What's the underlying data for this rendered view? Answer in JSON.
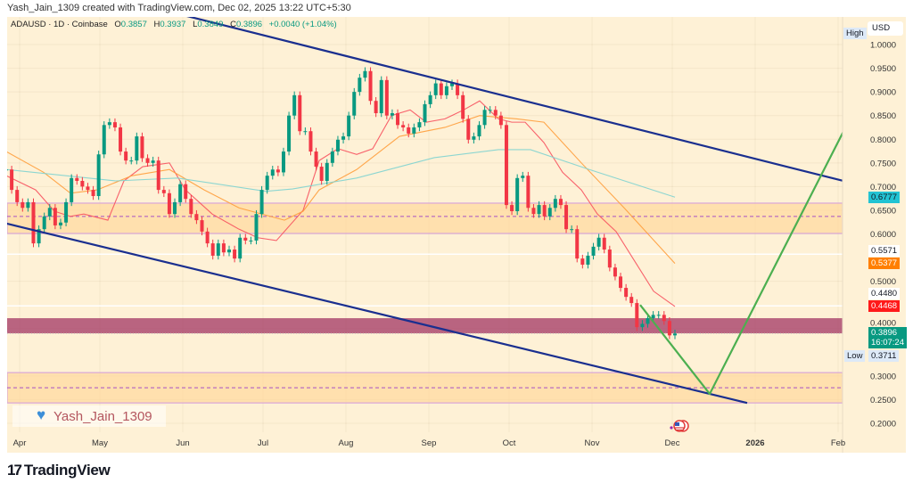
{
  "credit": "Yash_Jain_1309 created with TradingView.com, Dec 02, 2025 13:22 UTC+5:30",
  "legend": {
    "symbol": "ADAUSD · 1D · Coinbase",
    "o_label": "O",
    "o": "0.3857",
    "h_label": "H",
    "h": "0.3937",
    "l_label": "L",
    "l": "0.3849",
    "c_label": "C",
    "c": "0.3896",
    "change": "+0.0040 (+1.04%)"
  },
  "currency": "USD",
  "high_label": "High",
  "low_label": "Low",
  "watermark": "Yash_Jain_1309",
  "brand": "TradingView",
  "colors": {
    "background": "#fef1d6",
    "up": "#089981",
    "down": "#f23645",
    "ma_fast": "#f7525f",
    "ma_mid": "#ff9d3b",
    "ma_slow": "#7fd3d0",
    "channel": "#1a2f8f",
    "projection": "#4caf50",
    "zone": "#ffd9a0",
    "zone_border": "#d8a6d8",
    "resistance_zone": "#a8416a"
  },
  "chart_data": {
    "type": "candlestick",
    "symbol": "ADAUSD",
    "interval": "1D",
    "y_scale": "linear",
    "ylim": [
      0.2,
      1.0
    ],
    "first_date": "2025-03-27",
    "last_date": "2025-12-02",
    "closes": [
      0.736,
      0.693,
      0.667,
      0.655,
      0.667,
      0.58,
      0.61,
      0.637,
      0.655,
      0.618,
      0.624,
      0.667,
      0.718,
      0.712,
      0.7,
      0.693,
      0.68,
      0.768,
      0.83,
      0.836,
      0.825,
      0.774,
      0.755,
      0.755,
      0.806,
      0.76,
      0.75,
      0.755,
      0.693,
      0.686,
      0.642,
      0.667,
      0.705,
      0.674,
      0.642,
      0.629,
      0.605,
      0.58,
      0.554,
      0.58,
      0.561,
      0.567,
      0.548,
      0.592,
      0.586,
      0.586,
      0.642,
      0.693,
      0.723,
      0.736,
      0.73,
      0.774,
      0.85,
      0.893,
      0.817,
      0.817,
      0.774,
      0.742,
      0.712,
      0.75,
      0.774,
      0.799,
      0.806,
      0.85,
      0.9,
      0.93,
      0.944,
      0.881,
      0.855,
      0.925,
      0.85,
      0.855,
      0.83,
      0.825,
      0.812,
      0.825,
      0.836,
      0.874,
      0.893,
      0.918,
      0.893,
      0.912,
      0.918,
      0.893,
      0.843,
      0.799,
      0.806,
      0.83,
      0.862,
      0.862,
      0.85,
      0.83,
      0.661,
      0.648,
      0.718,
      0.723,
      0.655,
      0.642,
      0.661,
      0.637,
      0.655,
      0.674,
      0.661,
      0.61,
      0.61,
      0.548,
      0.535,
      0.554,
      0.573,
      0.592,
      0.567,
      0.529,
      0.51,
      0.486,
      0.467,
      0.454,
      0.403,
      0.41,
      0.422,
      0.429,
      0.429,
      0.416,
      0.3857,
      0.3896
    ],
    "moving_averages": [
      {
        "color_key": "ma_fast",
        "points": [
          [
            "2025-03-27",
            0.723
          ],
          [
            "2025-04-07",
            0.693
          ],
          [
            "2025-04-14",
            0.648
          ],
          [
            "2025-04-20",
            0.637
          ],
          [
            "2025-04-25",
            0.642
          ],
          [
            "2025-05-04",
            0.629
          ],
          [
            "2025-05-10",
            0.712
          ],
          [
            "2025-05-17",
            0.742
          ],
          [
            "2025-05-27",
            0.75
          ],
          [
            "2025-06-02",
            0.693
          ],
          [
            "2025-06-12",
            0.642
          ],
          [
            "2025-06-22",
            0.61
          ],
          [
            "2025-06-29",
            0.592
          ],
          [
            "2025-07-06",
            0.586
          ],
          [
            "2025-07-11",
            0.618
          ],
          [
            "2025-07-16",
            0.65
          ],
          [
            "2025-07-22",
            0.755
          ],
          [
            "2025-07-29",
            0.78
          ],
          [
            "2025-08-05",
            0.768
          ],
          [
            "2025-08-11",
            0.78
          ],
          [
            "2025-08-18",
            0.85
          ],
          [
            "2025-08-25",
            0.862
          ],
          [
            "2025-08-31",
            0.836
          ],
          [
            "2025-09-07",
            0.843
          ],
          [
            "2025-09-14",
            0.862
          ],
          [
            "2025-09-20",
            0.881
          ],
          [
            "2025-09-27",
            0.843
          ],
          [
            "2025-10-02",
            0.836
          ],
          [
            "2025-10-07",
            0.836
          ],
          [
            "2025-10-14",
            0.793
          ],
          [
            "2025-10-21",
            0.73
          ],
          [
            "2025-10-28",
            0.693
          ],
          [
            "2025-11-03",
            0.642
          ],
          [
            "2025-11-10",
            0.605
          ],
          [
            "2025-11-17",
            0.542
          ],
          [
            "2025-11-24",
            0.479
          ],
          [
            "2025-12-02",
            0.4468
          ]
        ]
      },
      {
        "color_key": "ma_mid",
        "points": [
          [
            "2025-03-27",
            0.774
          ],
          [
            "2025-04-10",
            0.73
          ],
          [
            "2025-04-20",
            0.686
          ],
          [
            "2025-04-30",
            0.693
          ],
          [
            "2025-05-13",
            0.723
          ],
          [
            "2025-05-27",
            0.736
          ],
          [
            "2025-06-09",
            0.693
          ],
          [
            "2025-06-22",
            0.655
          ],
          [
            "2025-07-09",
            0.629
          ],
          [
            "2025-07-16",
            0.648
          ],
          [
            "2025-07-22",
            0.693
          ],
          [
            "2025-08-05",
            0.736
          ],
          [
            "2025-08-21",
            0.806
          ],
          [
            "2025-09-07",
            0.825
          ],
          [
            "2025-09-20",
            0.85
          ],
          [
            "2025-10-04",
            0.843
          ],
          [
            "2025-10-14",
            0.836
          ],
          [
            "2025-10-28",
            0.75
          ],
          [
            "2025-11-13",
            0.655
          ],
          [
            "2025-12-02",
            0.5377
          ]
        ]
      },
      {
        "color_key": "ma_slow",
        "points": [
          [
            "2025-03-27",
            0.736
          ],
          [
            "2025-05-07",
            0.712
          ],
          [
            "2025-05-30",
            0.718
          ],
          [
            "2025-07-02",
            0.69
          ],
          [
            "2025-07-12",
            0.695
          ],
          [
            "2025-08-05",
            0.718
          ],
          [
            "2025-09-03",
            0.761
          ],
          [
            "2025-09-27",
            0.778
          ],
          [
            "2025-10-09",
            0.778
          ],
          [
            "2025-10-31",
            0.736
          ],
          [
            "2025-12-02",
            0.6777
          ]
        ]
      }
    ],
    "zones": [
      {
        "kind": "demand",
        "top": 0.665,
        "bottom": 0.601,
        "mid": 0.637
      },
      {
        "kind": "demand",
        "top": 0.307,
        "bottom": 0.243,
        "mid": 0.275
      },
      {
        "kind": "resistance",
        "top": 0.422,
        "bottom": 0.39
      }
    ],
    "horizontal_lines": [
      0.5571,
      0.448
    ],
    "trendlines": [
      {
        "name_key": "channel-upper",
        "points": [
          [
            "2025-06-02",
            1.061
          ],
          [
            "2026-02-10",
            0.702
          ]
        ]
      },
      {
        "name_key": "channel-lower",
        "points": [
          [
            "2025-03-27",
            0.622
          ],
          [
            "2025-12-29",
            0.243
          ]
        ]
      }
    ],
    "projection_path": [
      [
        "2025-11-19",
        0.45
      ],
      [
        "2025-12-15",
        0.262
      ],
      [
        "2026-02-09",
        0.883
      ],
      [
        "2026-02-10",
        0.83
      ]
    ],
    "y_ticks": [
      "1.0000",
      "0.9500",
      "0.9000",
      "0.8500",
      "0.8000",
      "0.7500",
      "0.7000",
      "0.6500",
      "0.6000",
      "0.5000",
      "0.4000",
      "0.3000",
      "0.2500",
      "0.2000"
    ],
    "x_ticks": [
      {
        "label": "Apr",
        "date": "2025-04-01"
      },
      {
        "label": "May",
        "date": "2025-05-01"
      },
      {
        "label": "Jun",
        "date": "2025-06-01"
      },
      {
        "label": "Jul",
        "date": "2025-07-01"
      },
      {
        "label": "Aug",
        "date": "2025-08-01"
      },
      {
        "label": "Sep",
        "date": "2025-09-01"
      },
      {
        "label": "Oct",
        "date": "2025-10-01"
      },
      {
        "label": "Nov",
        "date": "2025-11-01"
      },
      {
        "label": "Dec",
        "date": "2025-12-01"
      },
      {
        "label": "2026",
        "date": "2026-01-01",
        "bold": true
      },
      {
        "label": "Feb",
        "date": "2026-02-01"
      }
    ],
    "price_labels": [
      {
        "value": "0.6777",
        "price": 0.6777,
        "bg": "#22c3d3",
        "fg": "#131722"
      },
      {
        "value": "0.5571",
        "price": 0.5571,
        "bg": "#ffffff",
        "fg": "#131722"
      },
      {
        "value": "0.5377",
        "price": 0.5377,
        "bg": "#ff7f00",
        "fg": "#ffffff"
      },
      {
        "value": "0.4480",
        "price": 0.448,
        "bg": "#ffffff",
        "fg": "#131722"
      },
      {
        "value": "0.4468",
        "price": 0.4468,
        "bg": "#ff1a1a",
        "fg": "#ffffff"
      }
    ],
    "last_price": {
      "value": "0.3896",
      "countdown": "16:07:24",
      "price": 0.3896,
      "bg": "#089981"
    },
    "low": {
      "value": "0.3711",
      "price": 0.3711
    },
    "high_price": 1.0
  }
}
